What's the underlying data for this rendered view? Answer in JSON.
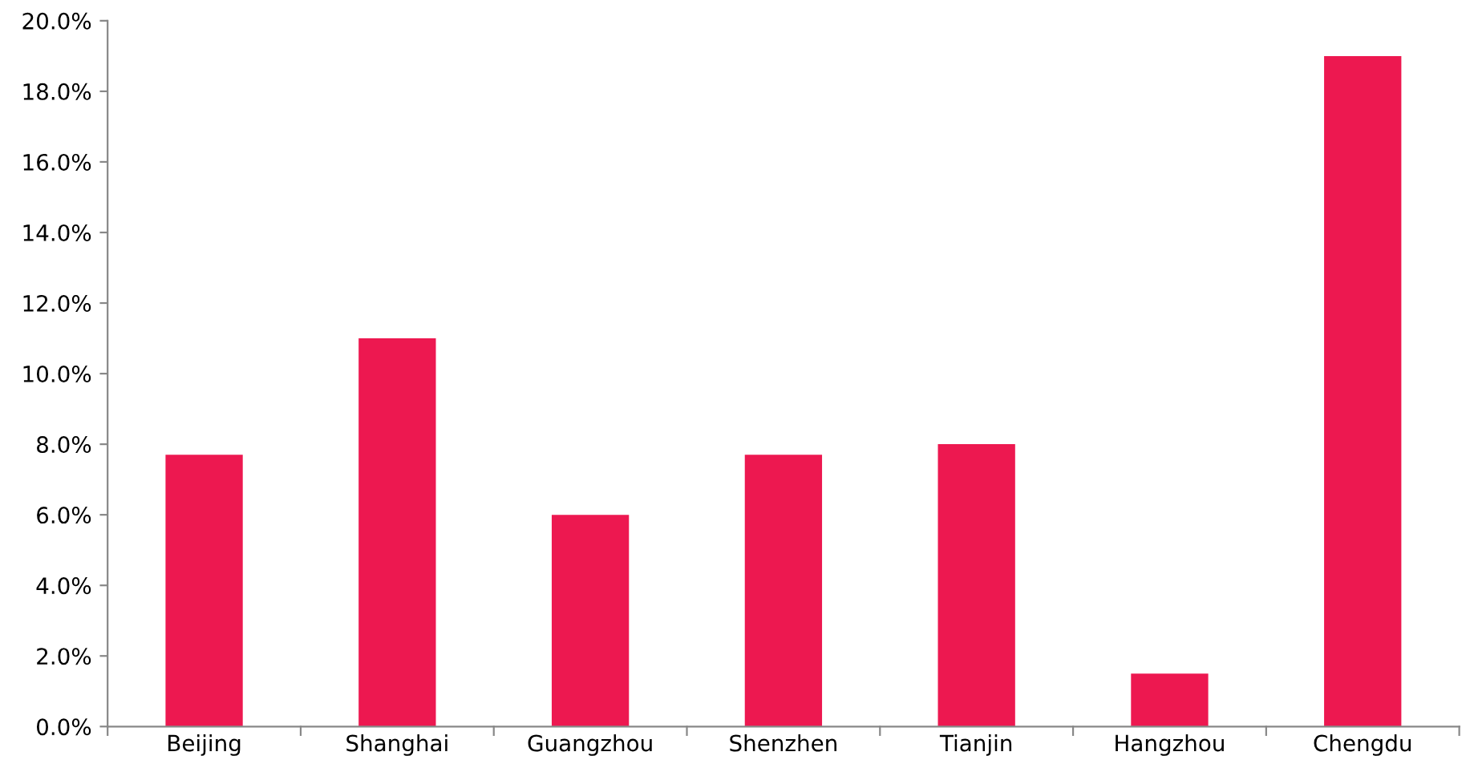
{
  "chart_data": {
    "type": "bar",
    "categories": [
      "Beijing",
      "Shanghai",
      "Guangzhou",
      "Shenzhen",
      "Tianjin",
      "Hangzhou",
      "Chengdu"
    ],
    "values": [
      7.7,
      11.0,
      6.0,
      7.7,
      8.0,
      1.5,
      19.0
    ],
    "color": "#ed1850",
    "ylim": [
      0,
      20
    ],
    "yticks": [
      {
        "value": 0,
        "label": "0.0%"
      },
      {
        "value": 2,
        "label": "2.0%"
      },
      {
        "value": 4,
        "label": "4.0%"
      },
      {
        "value": 6,
        "label": "6.0%"
      },
      {
        "value": 8,
        "label": "8.0%"
      },
      {
        "value": 10,
        "label": "10.0%"
      },
      {
        "value": 12,
        "label": "12.0%"
      },
      {
        "value": 14,
        "label": "14.0%"
      },
      {
        "value": 16,
        "label": "16.0%"
      },
      {
        "value": 18,
        "label": "18.0%"
      },
      {
        "value": 20,
        "label": "20.0%"
      }
    ],
    "grid": false
  }
}
